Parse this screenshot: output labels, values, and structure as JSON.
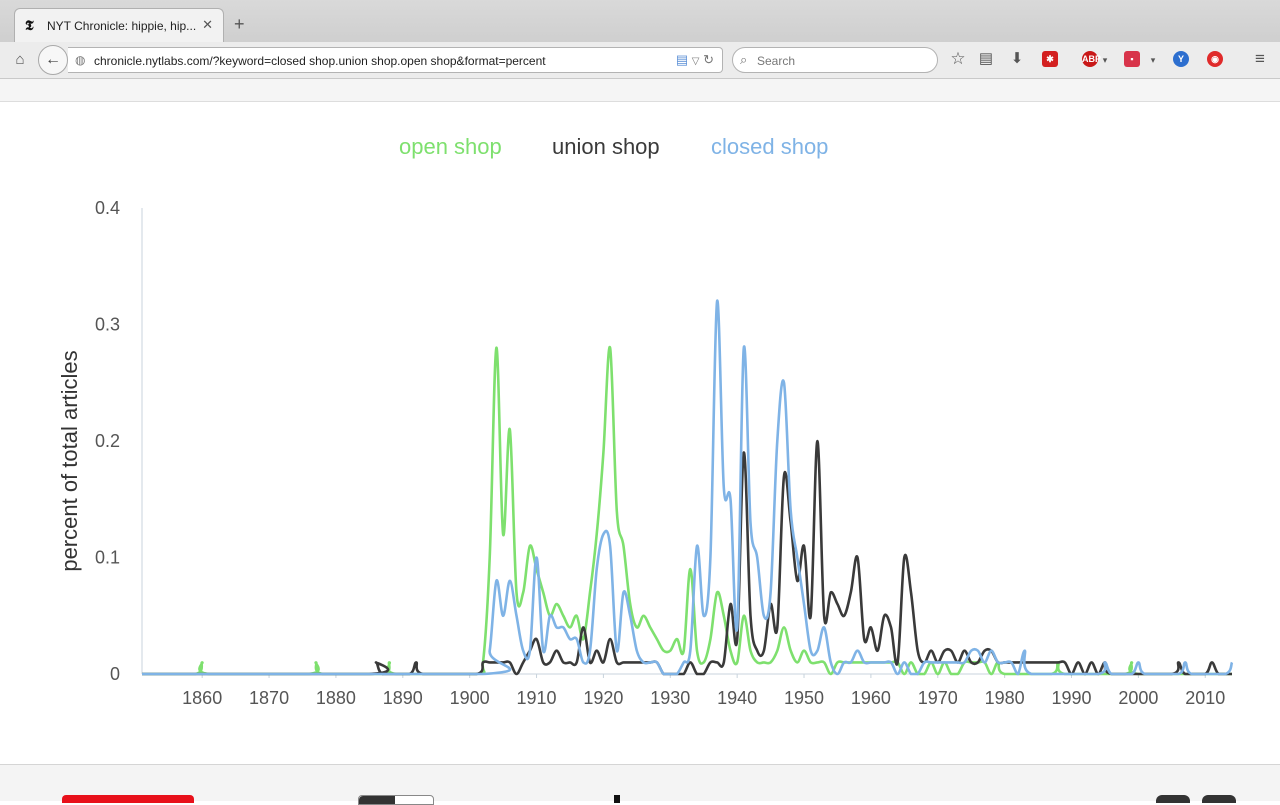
{
  "browser": {
    "tab_title": "NYT Chronicle: hippie, hip...",
    "tab_favicon": "𝕿",
    "url": "chronicle.nytlabs.com/?keyword=closed shop.union shop.open shop&format=percent",
    "search_placeholder": "Search",
    "extensions": [
      "bookmark-star-icon",
      "reading-list-icon",
      "download-icon",
      "lastpass-icon",
      "adblock-plus-icon",
      "pocket-icon",
      "stylish-icon",
      "lips-icon",
      "menu-icon"
    ]
  },
  "colors": {
    "open_shop": "#7ee06e",
    "union_shop": "#3a3a3a",
    "closed_shop": "#7fb3e6"
  },
  "chart_data": {
    "type": "line",
    "title": "",
    "xlabel": "",
    "ylabel": "percent of total articles",
    "xlim": [
      1851,
      2014
    ],
    "ylim": [
      0,
      0.4
    ],
    "xticks": [
      1860,
      1870,
      1880,
      1890,
      1900,
      1910,
      1920,
      1930,
      1940,
      1950,
      1960,
      1970,
      1980,
      1990,
      2000,
      2010
    ],
    "yticks": [
      0,
      0.1,
      0.2,
      0.3,
      0.4
    ],
    "ytick_labels": [
      "0",
      "0.1",
      "0.2",
      "0.3",
      "0.4"
    ],
    "grid": false,
    "legend": "top-center",
    "series": [
      {
        "name": "open shop",
        "points": [
          [
            1851,
            0
          ],
          [
            1859,
            0
          ],
          [
            1860,
            0.01
          ],
          [
            1861,
            0
          ],
          [
            1876,
            0
          ],
          [
            1877,
            0.01
          ],
          [
            1878,
            0
          ],
          [
            1887,
            0
          ],
          [
            1888,
            0.01
          ],
          [
            1889,
            0
          ],
          [
            1901,
            0
          ],
          [
            1902,
            0.01
          ],
          [
            1903,
            0.1
          ],
          [
            1904,
            0.28
          ],
          [
            1905,
            0.12
          ],
          [
            1906,
            0.21
          ],
          [
            1907,
            0.07
          ],
          [
            1908,
            0.07
          ],
          [
            1909,
            0.11
          ],
          [
            1910,
            0.09
          ],
          [
            1911,
            0.07
          ],
          [
            1912,
            0.05
          ],
          [
            1913,
            0.06
          ],
          [
            1914,
            0.05
          ],
          [
            1915,
            0.04
          ],
          [
            1916,
            0.05
          ],
          [
            1917,
            0.03
          ],
          [
            1918,
            0.07
          ],
          [
            1919,
            0.12
          ],
          [
            1920,
            0.19
          ],
          [
            1921,
            0.28
          ],
          [
            1922,
            0.14
          ],
          [
            1923,
            0.11
          ],
          [
            1924,
            0.06
          ],
          [
            1925,
            0.04
          ],
          [
            1926,
            0.05
          ],
          [
            1927,
            0.04
          ],
          [
            1928,
            0.03
          ],
          [
            1929,
            0.02
          ],
          [
            1930,
            0.02
          ],
          [
            1931,
            0.03
          ],
          [
            1932,
            0.02
          ],
          [
            1933,
            0.09
          ],
          [
            1934,
            0.02
          ],
          [
            1935,
            0.01
          ],
          [
            1936,
            0.03
          ],
          [
            1937,
            0.07
          ],
          [
            1938,
            0.05
          ],
          [
            1939,
            0.02
          ],
          [
            1940,
            0.01
          ],
          [
            1941,
            0.05
          ],
          [
            1942,
            0.02
          ],
          [
            1943,
            0.01
          ],
          [
            1944,
            0.01
          ],
          [
            1945,
            0.01
          ],
          [
            1946,
            0.02
          ],
          [
            1947,
            0.04
          ],
          [
            1948,
            0.02
          ],
          [
            1949,
            0.01
          ],
          [
            1950,
            0.02
          ],
          [
            1951,
            0.01
          ],
          [
            1952,
            0.01
          ],
          [
            1953,
            0.01
          ],
          [
            1954,
            0
          ],
          [
            1955,
            0.01
          ],
          [
            1956,
            0.01
          ],
          [
            1957,
            0.01
          ],
          [
            1958,
            0.01
          ],
          [
            1959,
            0.01
          ],
          [
            1960,
            0.01
          ],
          [
            1961,
            0.01
          ],
          [
            1962,
            0.01
          ],
          [
            1963,
            0.01
          ],
          [
            1964,
            0.01
          ],
          [
            1965,
            0
          ],
          [
            1966,
            0.01
          ],
          [
            1967,
            0
          ],
          [
            1968,
            0
          ],
          [
            1969,
            0.01
          ],
          [
            1970,
            0
          ],
          [
            1971,
            0.01
          ],
          [
            1972,
            0
          ],
          [
            1973,
            0
          ],
          [
            1974,
            0.01
          ],
          [
            1975,
            0.01
          ],
          [
            1976,
            0.01
          ],
          [
            1977,
            0.01
          ],
          [
            1978,
            0
          ],
          [
            1979,
            0.01
          ],
          [
            1980,
            0
          ],
          [
            1987,
            0
          ],
          [
            1988,
            0.01
          ],
          [
            1989,
            0
          ],
          [
            1998,
            0
          ],
          [
            1999,
            0.01
          ],
          [
            2000,
            0
          ],
          [
            2014,
            0
          ]
        ]
      },
      {
        "name": "union shop",
        "points": [
          [
            1851,
            0
          ],
          [
            1885,
            0
          ],
          [
            1886,
            0.01
          ],
          [
            1887,
            0
          ],
          [
            1891,
            0
          ],
          [
            1892,
            0.01
          ],
          [
            1893,
            0
          ],
          [
            1901,
            0
          ],
          [
            1902,
            0.01
          ],
          [
            1903,
            0.01
          ],
          [
            1904,
            0.01
          ],
          [
            1905,
            0.01
          ],
          [
            1906,
            0.01
          ],
          [
            1907,
            0
          ],
          [
            1908,
            0.01
          ],
          [
            1909,
            0.02
          ],
          [
            1910,
            0.03
          ],
          [
            1911,
            0.01
          ],
          [
            1912,
            0.01
          ],
          [
            1913,
            0.02
          ],
          [
            1914,
            0.01
          ],
          [
            1915,
            0.01
          ],
          [
            1916,
            0.01
          ],
          [
            1917,
            0.04
          ],
          [
            1918,
            0.01
          ],
          [
            1919,
            0.02
          ],
          [
            1920,
            0.01
          ],
          [
            1921,
            0.03
          ],
          [
            1922,
            0.01
          ],
          [
            1923,
            0.01
          ],
          [
            1924,
            0.01
          ],
          [
            1925,
            0.01
          ],
          [
            1926,
            0.01
          ],
          [
            1927,
            0.01
          ],
          [
            1928,
            0.01
          ],
          [
            1929,
            0
          ],
          [
            1930,
            0
          ],
          [
            1931,
            0
          ],
          [
            1932,
            0
          ],
          [
            1933,
            0.01
          ],
          [
            1934,
            0
          ],
          [
            1935,
            0
          ],
          [
            1936,
            0.01
          ],
          [
            1937,
            0.01
          ],
          [
            1938,
            0.01
          ],
          [
            1939,
            0.06
          ],
          [
            1940,
            0.03
          ],
          [
            1941,
            0.19
          ],
          [
            1942,
            0.05
          ],
          [
            1943,
            0.02
          ],
          [
            1944,
            0.02
          ],
          [
            1945,
            0.06
          ],
          [
            1946,
            0.04
          ],
          [
            1947,
            0.17
          ],
          [
            1948,
            0.13
          ],
          [
            1949,
            0.08
          ],
          [
            1950,
            0.11
          ],
          [
            1951,
            0.05
          ],
          [
            1952,
            0.2
          ],
          [
            1953,
            0.05
          ],
          [
            1954,
            0.07
          ],
          [
            1955,
            0.06
          ],
          [
            1956,
            0.05
          ],
          [
            1957,
            0.07
          ],
          [
            1958,
            0.1
          ],
          [
            1959,
            0.03
          ],
          [
            1960,
            0.04
          ],
          [
            1961,
            0.02
          ],
          [
            1962,
            0.05
          ],
          [
            1963,
            0.04
          ],
          [
            1964,
            0.01
          ],
          [
            1965,
            0.1
          ],
          [
            1966,
            0.07
          ],
          [
            1967,
            0.02
          ],
          [
            1968,
            0.01
          ],
          [
            1969,
            0.02
          ],
          [
            1970,
            0.01
          ],
          [
            1971,
            0.02
          ],
          [
            1972,
            0.02
          ],
          [
            1973,
            0.01
          ],
          [
            1974,
            0.02
          ],
          [
            1975,
            0.01
          ],
          [
            1976,
            0.01
          ],
          [
            1977,
            0.02
          ],
          [
            1978,
            0.02
          ],
          [
            1979,
            0.01
          ],
          [
            1980,
            0.01
          ],
          [
            1981,
            0.01
          ],
          [
            1982,
            0.01
          ],
          [
            1983,
            0.01
          ],
          [
            1984,
            0.01
          ],
          [
            1985,
            0.01
          ],
          [
            1986,
            0.01
          ],
          [
            1987,
            0.01
          ],
          [
            1988,
            0.01
          ],
          [
            1989,
            0.01
          ],
          [
            1990,
            0
          ],
          [
            1991,
            0.01
          ],
          [
            1992,
            0
          ],
          [
            1993,
            0.01
          ],
          [
            1994,
            0
          ],
          [
            1995,
            0.01
          ],
          [
            1996,
            0
          ],
          [
            2005,
            0
          ],
          [
            2006,
            0.01
          ],
          [
            2007,
            0
          ],
          [
            2010,
            0
          ],
          [
            2011,
            0.01
          ],
          [
            2012,
            0
          ],
          [
            2014,
            0
          ]
        ]
      },
      {
        "name": "closed shop",
        "points": [
          [
            1851,
            0
          ],
          [
            1902,
            0
          ],
          [
            1903,
            0.02
          ],
          [
            1904,
            0.08
          ],
          [
            1905,
            0.05
          ],
          [
            1906,
            0.08
          ],
          [
            1907,
            0.05
          ],
          [
            1908,
            0.02
          ],
          [
            1909,
            0.02
          ],
          [
            1910,
            0.1
          ],
          [
            1911,
            0.02
          ],
          [
            1912,
            0.05
          ],
          [
            1913,
            0.04
          ],
          [
            1914,
            0.04
          ],
          [
            1915,
            0.03
          ],
          [
            1916,
            0.03
          ],
          [
            1917,
            0.01
          ],
          [
            1918,
            0.02
          ],
          [
            1919,
            0.09
          ],
          [
            1920,
            0.12
          ],
          [
            1921,
            0.11
          ],
          [
            1922,
            0.02
          ],
          [
            1923,
            0.07
          ],
          [
            1924,
            0.05
          ],
          [
            1925,
            0.02
          ],
          [
            1926,
            0.01
          ],
          [
            1927,
            0.01
          ],
          [
            1928,
            0.01
          ],
          [
            1929,
            0
          ],
          [
            1930,
            0
          ],
          [
            1931,
            0
          ],
          [
            1932,
            0.01
          ],
          [
            1933,
            0.02
          ],
          [
            1934,
            0.11
          ],
          [
            1935,
            0.05
          ],
          [
            1936,
            0.1
          ],
          [
            1937,
            0.32
          ],
          [
            1938,
            0.16
          ],
          [
            1939,
            0.15
          ],
          [
            1940,
            0.04
          ],
          [
            1941,
            0.28
          ],
          [
            1942,
            0.13
          ],
          [
            1943,
            0.1
          ],
          [
            1944,
            0.05
          ],
          [
            1945,
            0.07
          ],
          [
            1946,
            0.2
          ],
          [
            1947,
            0.25
          ],
          [
            1948,
            0.14
          ],
          [
            1949,
            0.1
          ],
          [
            1950,
            0.06
          ],
          [
            1951,
            0.02
          ],
          [
            1952,
            0.02
          ],
          [
            1953,
            0.04
          ],
          [
            1954,
            0.01
          ],
          [
            1955,
            0
          ],
          [
            1956,
            0.01
          ],
          [
            1957,
            0.01
          ],
          [
            1958,
            0.02
          ],
          [
            1959,
            0.01
          ],
          [
            1960,
            0.01
          ],
          [
            1961,
            0.01
          ],
          [
            1962,
            0.01
          ],
          [
            1963,
            0.01
          ],
          [
            1964,
            0
          ],
          [
            1965,
            0.01
          ],
          [
            1966,
            0
          ],
          [
            1967,
            0
          ],
          [
            1968,
            0.01
          ],
          [
            1969,
            0.01
          ],
          [
            1970,
            0.01
          ],
          [
            1971,
            0.01
          ],
          [
            1972,
            0.01
          ],
          [
            1973,
            0.01
          ],
          [
            1974,
            0.01
          ],
          [
            1975,
            0.02
          ],
          [
            1976,
            0.02
          ],
          [
            1977,
            0.01
          ],
          [
            1978,
            0.02
          ],
          [
            1979,
            0.01
          ],
          [
            1980,
            0.01
          ],
          [
            1981,
            0.01
          ],
          [
            1982,
            0
          ],
          [
            1983,
            0.02
          ],
          [
            1984,
            0
          ],
          [
            1994,
            0
          ],
          [
            1995,
            0.01
          ],
          [
            1996,
            0
          ],
          [
            1999,
            0
          ],
          [
            2000,
            0.01
          ],
          [
            2001,
            0
          ],
          [
            2006,
            0
          ],
          [
            2007,
            0.01
          ],
          [
            2008,
            0
          ],
          [
            2013,
            0
          ],
          [
            2014,
            0.01
          ]
        ]
      }
    ]
  }
}
